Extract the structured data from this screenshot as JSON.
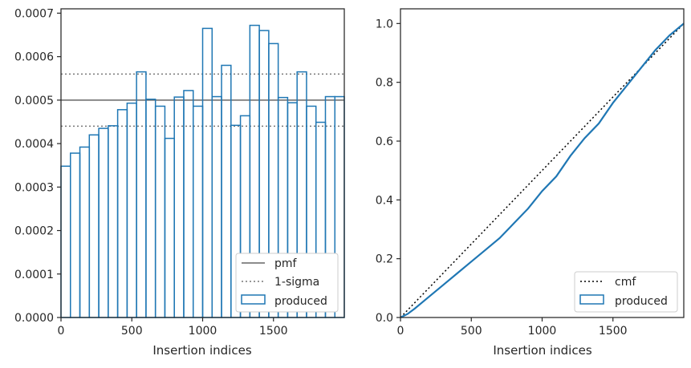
{
  "chart_data": [
    {
      "type": "histogram-step",
      "xlabel": "Insertion indices",
      "ylabel": "",
      "xlim": [
        0,
        2000
      ],
      "ylim": [
        0,
        0.00071
      ],
      "xticks": [
        "0",
        "500",
        "1000",
        "1500"
      ],
      "yticks": [
        "0.0000",
        "0.0001",
        "0.0002",
        "0.0003",
        "0.0004",
        "0.0005",
        "0.0006",
        "0.0007"
      ],
      "xtick_values": [
        0,
        500,
        1000,
        1500
      ],
      "ytick_values": [
        0,
        0.0001,
        0.0002,
        0.0003,
        0.0004,
        0.0005,
        0.0006,
        0.0007
      ],
      "bin_width": 66.67,
      "series": [
        {
          "name": "produced",
          "color": "#1f77b4",
          "values": [
            0.000348,
            0.000378,
            0.000392,
            0.00042,
            0.000435,
            0.000441,
            0.000478,
            0.000493,
            0.000565,
            0.000502,
            0.000486,
            0.000412,
            0.000507,
            0.000522,
            0.000486,
            0.000665,
            0.000508,
            0.00058,
            0.000442,
            0.000464,
            0.000672,
            0.00066,
            0.00063,
            0.000506,
            0.000494,
            0.000565,
            0.000486,
            0.000449,
            0.000508,
            0.000508
          ]
        }
      ],
      "reference_lines": [
        {
          "name": "pmf",
          "value": 0.0005,
          "style": "solid",
          "color": "#666666"
        },
        {
          "name": "1-sigma",
          "values": [
            0.00056,
            0.00044
          ],
          "style": "dotted",
          "color": "#777777"
        }
      ],
      "legend": {
        "placement": "lower-right",
        "entries": [
          "pmf",
          "1-sigma",
          "produced"
        ]
      }
    },
    {
      "type": "line",
      "xlabel": "Insertion indices",
      "ylabel": "",
      "xlim": [
        0,
        2000
      ],
      "ylim": [
        0,
        1.05
      ],
      "xticks": [
        "0",
        "500",
        "1000",
        "1500"
      ],
      "yticks": [
        "0.0",
        "0.2",
        "0.4",
        "0.6",
        "0.8",
        "1.0"
      ],
      "xtick_values": [
        0,
        500,
        1000,
        1500
      ],
      "ytick_values": [
        0,
        0.2,
        0.4,
        0.6,
        0.8,
        1.0
      ],
      "series": [
        {
          "name": "cmf",
          "style": "dotted",
          "color": "#000000",
          "x": [
            0,
            2000
          ],
          "y": [
            0,
            1.0
          ]
        },
        {
          "name": "produced",
          "color": "#1f77b4",
          "x": [
            0,
            50,
            100,
            200,
            300,
            400,
            500,
            600,
            700,
            800,
            900,
            1000,
            1100,
            1200,
            1300,
            1400,
            1500,
            1600,
            1700,
            1800,
            1900,
            2000
          ],
          "y": [
            0,
            0.012,
            0.03,
            0.07,
            0.11,
            0.15,
            0.19,
            0.23,
            0.27,
            0.32,
            0.37,
            0.43,
            0.48,
            0.55,
            0.61,
            0.66,
            0.73,
            0.79,
            0.85,
            0.91,
            0.96,
            1.0
          ]
        }
      ],
      "legend": {
        "placement": "lower-right",
        "entries": [
          "cmf",
          "produced"
        ]
      }
    }
  ]
}
